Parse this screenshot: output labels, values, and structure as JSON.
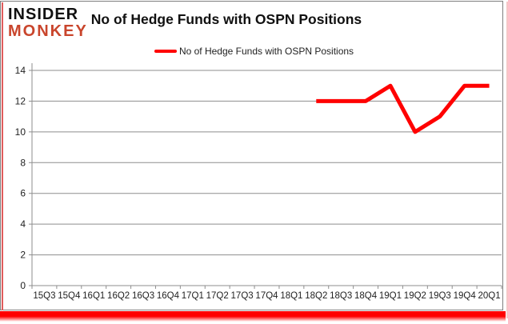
{
  "brand": {
    "line1": "INSIDER",
    "line2": "MONKEY",
    "monkey_color": "#c9452c"
  },
  "header": {
    "title": "No of Hedge Funds with OSPN Positions"
  },
  "legend": {
    "label": "No of Hedge Funds with OSPN Positions",
    "swatch_color": "#ff0000"
  },
  "chart_data": {
    "type": "line",
    "title": "No of Hedge Funds with OSPN Positions",
    "categories": [
      "15Q3",
      "15Q4",
      "16Q1",
      "16Q2",
      "16Q3",
      "16Q4",
      "17Q1",
      "17Q2",
      "17Q3",
      "17Q4",
      "18Q1",
      "18Q2",
      "18Q3",
      "18Q4",
      "19Q1",
      "19Q2",
      "19Q3",
      "19Q4",
      "20Q1"
    ],
    "series": [
      {
        "name": "No of Hedge Funds with OSPN Positions",
        "color": "#ff0000",
        "values": [
          null,
          null,
          null,
          null,
          null,
          null,
          null,
          null,
          null,
          null,
          null,
          12,
          12,
          12,
          13,
          10,
          11,
          13,
          13
        ]
      }
    ],
    "ylim": [
      0,
      14
    ],
    "ytick_step": 2,
    "grid": "horizontal-only",
    "grid_color": "#8e8e8e",
    "axis_color": "#8e8e8e",
    "tick_label_color": "#1f1f1f",
    "legend_position": "top-center"
  },
  "accents": {
    "line_red": "#ff0000",
    "left_border": "#e05c5c",
    "bottom_bar": "#ff0000",
    "right_border": "#f6c6c6",
    "frame_gray": "#7f7f7f"
  }
}
